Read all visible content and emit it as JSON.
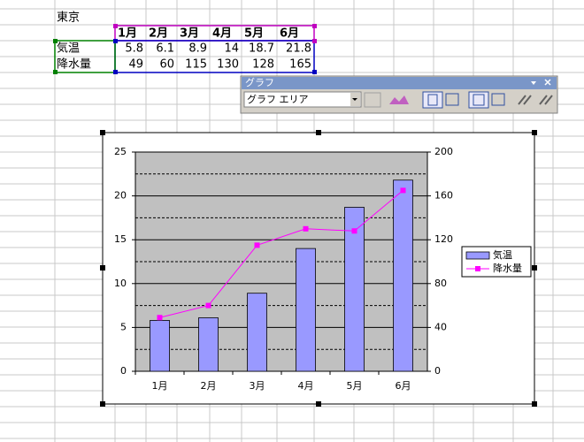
{
  "sheet": {
    "title": "東京",
    "header": [
      "1月",
      "2月",
      "3月",
      "4月",
      "5月",
      "6月"
    ],
    "rows": [
      {
        "label": "気温",
        "values": [
          5.8,
          6.1,
          8.9,
          14,
          18.7,
          21.8
        ]
      },
      {
        "label": "降水量",
        "values": [
          49,
          60,
          115,
          130,
          128,
          165
        ]
      }
    ]
  },
  "toolbar": {
    "title": "グラフ",
    "chart_object": "グラフ エリア"
  },
  "chart_data": {
    "type": "bar",
    "categories": [
      "1月",
      "2月",
      "3月",
      "4月",
      "5月",
      "6月"
    ],
    "series": [
      {
        "name": "気温",
        "type": "bar",
        "color": "#9999ff",
        "values": [
          5.8,
          6.1,
          8.9,
          14,
          18.7,
          21.8
        ]
      },
      {
        "name": "降水量",
        "type": "line",
        "axis": "y2",
        "color": "#ff00ff",
        "values": [
          49,
          60,
          115,
          130,
          128,
          165
        ]
      }
    ],
    "ylim": [
      0,
      25
    ],
    "yticks": [
      0,
      5,
      10,
      15,
      20,
      25
    ],
    "y2lim": [
      0,
      200
    ],
    "y2ticks": [
      0,
      40,
      80,
      120,
      160,
      200
    ],
    "minor_gridlines": [
      2.5,
      7.5,
      12.5,
      17.5,
      22.5
    ],
    "grid": true,
    "legend": "right"
  }
}
